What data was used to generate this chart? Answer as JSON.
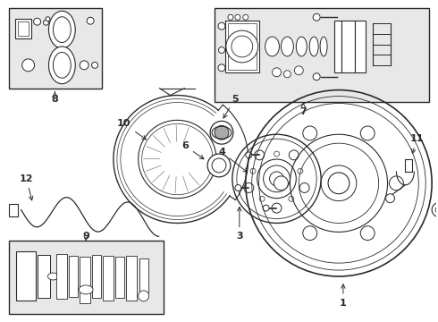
{
  "bg_color": "#ffffff",
  "line_color": "#2a2a2a",
  "box_fill": "#e8e8e8",
  "figsize": [
    4.9,
    3.6
  ],
  "dpi": 100
}
